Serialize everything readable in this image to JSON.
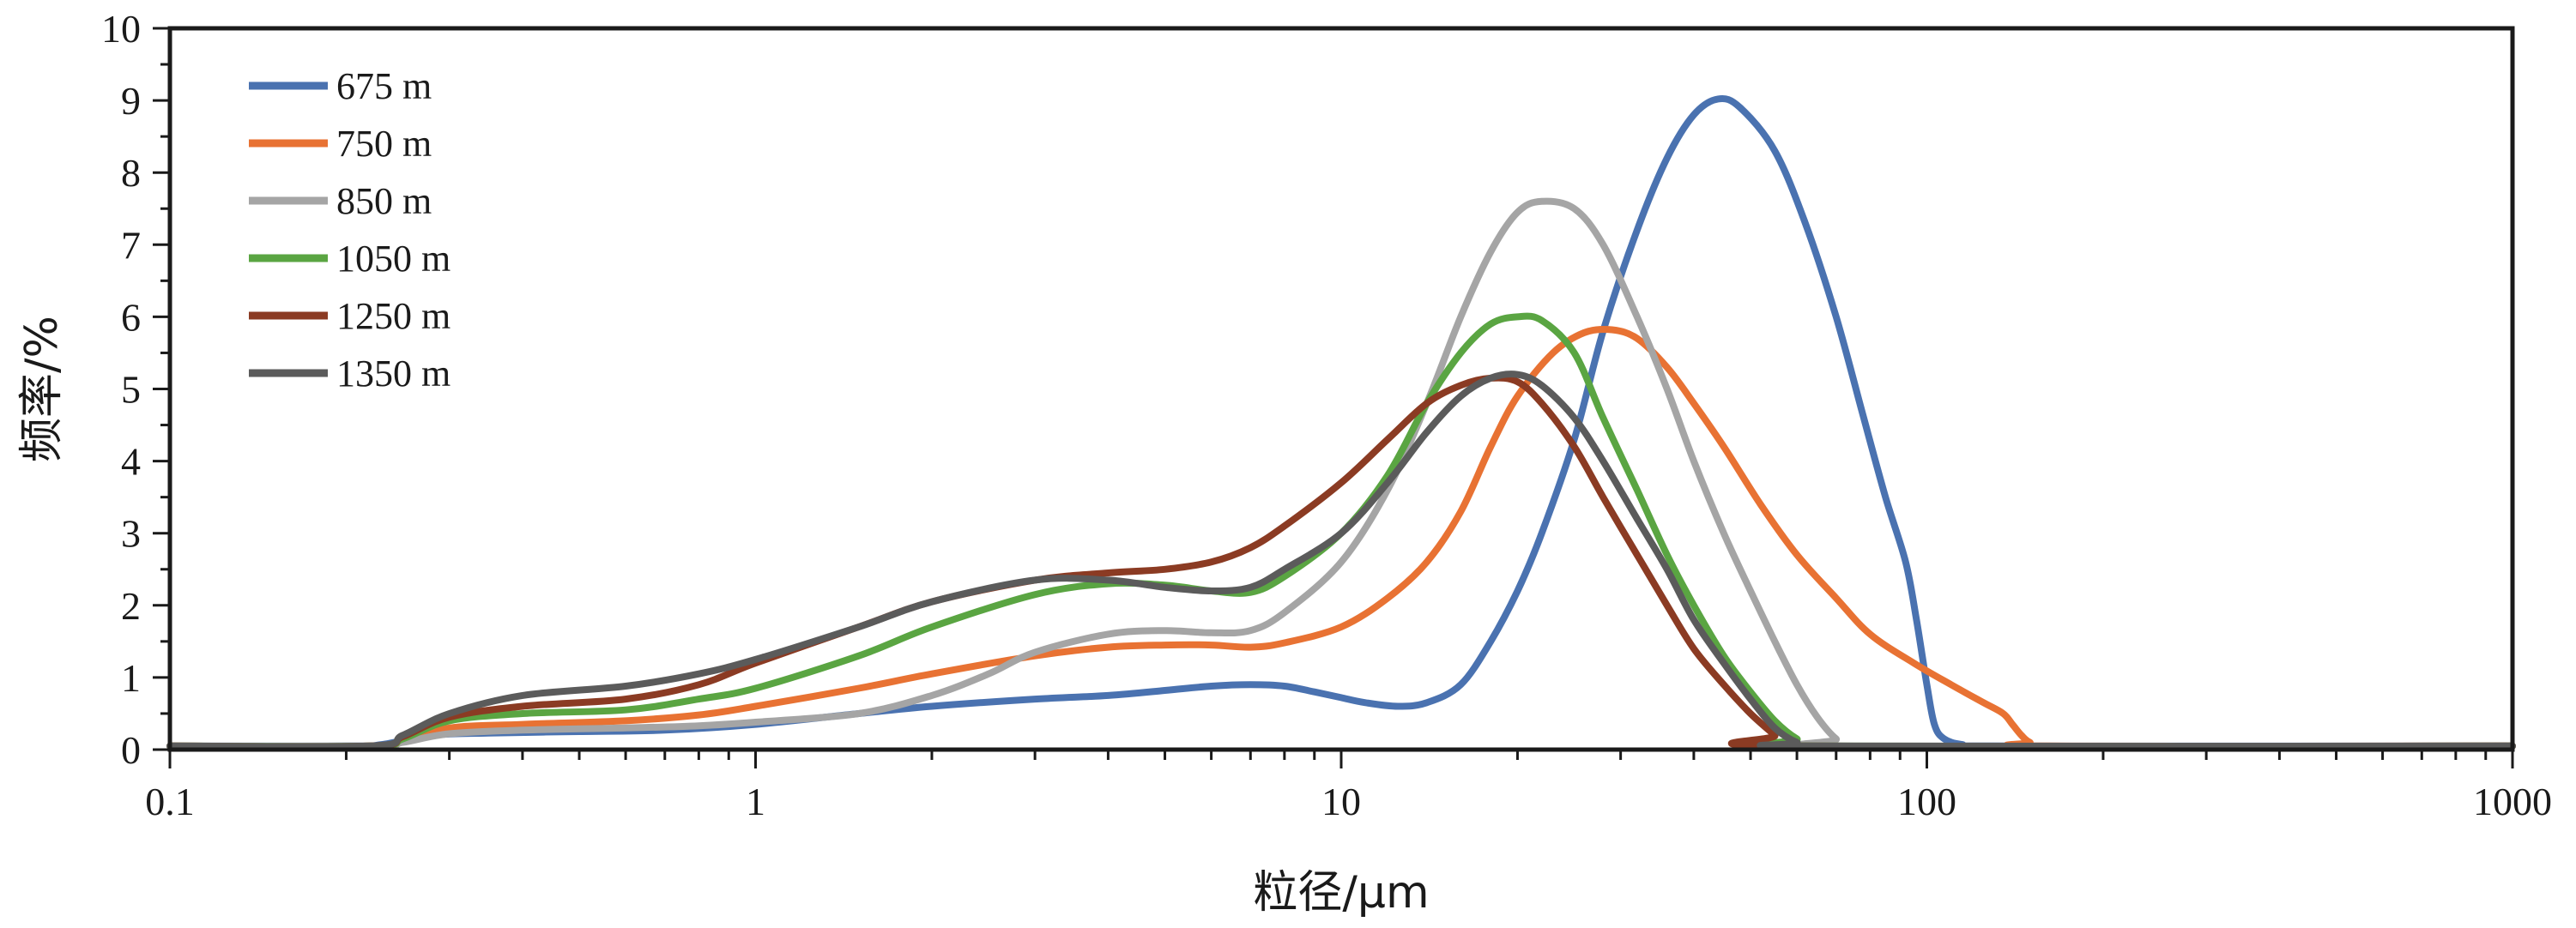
{
  "chart_data": {
    "type": "line",
    "xlabel": "粒径/μm",
    "ylabel": "频率/%",
    "x_scale": "log",
    "xlim": [
      0.1,
      1000
    ],
    "ylim": [
      0,
      10
    ],
    "x_ticks": [
      "0.1",
      "1",
      "10",
      "100",
      "1000"
    ],
    "y_ticks": [
      "0",
      "1",
      "2",
      "3",
      "4",
      "5",
      "6",
      "7",
      "8",
      "9",
      "10"
    ],
    "grid": false,
    "legend_position": "top-left",
    "series": [
      {
        "name": "675 m",
        "color": "#4a72b0",
        "points": [
          [
            0.1,
            0.05
          ],
          [
            0.2,
            0.05
          ],
          [
            0.23,
            0.07
          ],
          [
            0.28,
            0.2
          ],
          [
            0.35,
            0.23
          ],
          [
            0.5,
            0.25
          ],
          [
            0.7,
            0.27
          ],
          [
            1,
            0.35
          ],
          [
            1.5,
            0.5
          ],
          [
            2,
            0.6
          ],
          [
            3,
            0.7
          ],
          [
            4,
            0.75
          ],
          [
            5,
            0.82
          ],
          [
            6,
            0.88
          ],
          [
            7,
            0.9
          ],
          [
            8,
            0.88
          ],
          [
            9,
            0.8
          ],
          [
            10,
            0.72
          ],
          [
            11,
            0.65
          ],
          [
            12.5,
            0.6
          ],
          [
            14,
            0.65
          ],
          [
            16,
            0.9
          ],
          [
            18,
            1.5
          ],
          [
            20,
            2.2
          ],
          [
            22,
            3
          ],
          [
            25,
            4.3
          ],
          [
            28,
            5.8
          ],
          [
            32,
            7.2
          ],
          [
            36,
            8.2
          ],
          [
            40,
            8.8
          ],
          [
            44,
            9.02
          ],
          [
            48,
            8.9
          ],
          [
            55,
            8.3
          ],
          [
            62,
            7.3
          ],
          [
            70,
            6
          ],
          [
            78,
            4.6
          ],
          [
            85,
            3.5
          ],
          [
            92,
            2.6
          ],
          [
            96,
            1.8
          ],
          [
            100,
            0.9
          ],
          [
            103,
            0.35
          ],
          [
            107,
            0.15
          ],
          [
            115,
            0.07
          ],
          [
            130,
            0.05
          ],
          [
            1000,
            0.05
          ]
        ]
      },
      {
        "name": "750 m",
        "color": "#e87233",
        "points": [
          [
            0.1,
            0.05
          ],
          [
            0.22,
            0.05
          ],
          [
            0.25,
            0.12
          ],
          [
            0.3,
            0.3
          ],
          [
            0.4,
            0.35
          ],
          [
            0.6,
            0.4
          ],
          [
            0.8,
            0.48
          ],
          [
            1,
            0.6
          ],
          [
            1.5,
            0.85
          ],
          [
            2,
            1.05
          ],
          [
            3,
            1.3
          ],
          [
            4,
            1.42
          ],
          [
            5,
            1.45
          ],
          [
            6,
            1.45
          ],
          [
            7,
            1.42
          ],
          [
            8,
            1.48
          ],
          [
            10,
            1.7
          ],
          [
            12,
            2.1
          ],
          [
            14,
            2.6
          ],
          [
            16,
            3.3
          ],
          [
            18,
            4.2
          ],
          [
            20,
            4.9
          ],
          [
            23,
            5.5
          ],
          [
            26,
            5.78
          ],
          [
            29,
            5.82
          ],
          [
            32,
            5.7
          ],
          [
            36,
            5.3
          ],
          [
            40,
            4.8
          ],
          [
            45,
            4.2
          ],
          [
            52,
            3.4
          ],
          [
            60,
            2.7
          ],
          [
            70,
            2.1
          ],
          [
            80,
            1.6
          ],
          [
            95,
            1.2
          ],
          [
            110,
            0.9
          ],
          [
            125,
            0.65
          ],
          [
            135,
            0.5
          ],
          [
            140,
            0.35
          ],
          [
            145,
            0.2
          ],
          [
            150,
            0.1
          ],
          [
            160,
            0.05
          ],
          [
            1000,
            0.05
          ]
        ]
      },
      {
        "name": "850 m",
        "color": "#a5a5a5",
        "points": [
          [
            0.1,
            0.05
          ],
          [
            0.22,
            0.05
          ],
          [
            0.25,
            0.1
          ],
          [
            0.3,
            0.22
          ],
          [
            0.4,
            0.27
          ],
          [
            0.6,
            0.3
          ],
          [
            0.8,
            0.33
          ],
          [
            1,
            0.38
          ],
          [
            1.5,
            0.5
          ],
          [
            2,
            0.75
          ],
          [
            2.5,
            1.05
          ],
          [
            3,
            1.35
          ],
          [
            4,
            1.6
          ],
          [
            5,
            1.65
          ],
          [
            6,
            1.62
          ],
          [
            7,
            1.65
          ],
          [
            8,
            1.9
          ],
          [
            10,
            2.6
          ],
          [
            12,
            3.6
          ],
          [
            14,
            4.8
          ],
          [
            16,
            6
          ],
          [
            18,
            6.9
          ],
          [
            20,
            7.45
          ],
          [
            22,
            7.6
          ],
          [
            25,
            7.5
          ],
          [
            28,
            7
          ],
          [
            32,
            6
          ],
          [
            36,
            5
          ],
          [
            40,
            4
          ],
          [
            45,
            3
          ],
          [
            50,
            2.2
          ],
          [
            55,
            1.5
          ],
          [
            60,
            0.9
          ],
          [
            65,
            0.45
          ],
          [
            70,
            0.15
          ],
          [
            75,
            0.05
          ],
          [
            1000,
            0.05
          ]
        ]
      },
      {
        "name": "1050 m",
        "color": "#5aa542",
        "points": [
          [
            0.1,
            0.05
          ],
          [
            0.22,
            0.05
          ],
          [
            0.25,
            0.15
          ],
          [
            0.3,
            0.4
          ],
          [
            0.4,
            0.5
          ],
          [
            0.6,
            0.55
          ],
          [
            0.8,
            0.7
          ],
          [
            1,
            0.85
          ],
          [
            1.5,
            1.3
          ],
          [
            2,
            1.7
          ],
          [
            3,
            2.15
          ],
          [
            4,
            2.3
          ],
          [
            5,
            2.28
          ],
          [
            6,
            2.2
          ],
          [
            7,
            2.18
          ],
          [
            8,
            2.4
          ],
          [
            10,
            3
          ],
          [
            12,
            3.8
          ],
          [
            14,
            4.8
          ],
          [
            16,
            5.5
          ],
          [
            18,
            5.9
          ],
          [
            20,
            6
          ],
          [
            22,
            5.95
          ],
          [
            25,
            5.5
          ],
          [
            28,
            4.6
          ],
          [
            32,
            3.6
          ],
          [
            36,
            2.7
          ],
          [
            40,
            2
          ],
          [
            45,
            1.3
          ],
          [
            50,
            0.8
          ],
          [
            55,
            0.4
          ],
          [
            60,
            0.15
          ],
          [
            65,
            0.05
          ],
          [
            1000,
            0.05
          ]
        ]
      },
      {
        "name": "1250 m",
        "color": "#8b3b23",
        "points": [
          [
            0.1,
            0.05
          ],
          [
            0.22,
            0.05
          ],
          [
            0.25,
            0.18
          ],
          [
            0.3,
            0.45
          ],
          [
            0.4,
            0.6
          ],
          [
            0.6,
            0.7
          ],
          [
            0.8,
            0.9
          ],
          [
            1,
            1.2
          ],
          [
            1.5,
            1.7
          ],
          [
            2,
            2.05
          ],
          [
            3,
            2.35
          ],
          [
            4,
            2.45
          ],
          [
            5,
            2.5
          ],
          [
            6,
            2.6
          ],
          [
            7,
            2.8
          ],
          [
            8,
            3.1
          ],
          [
            10,
            3.7
          ],
          [
            12,
            4.3
          ],
          [
            14,
            4.8
          ],
          [
            16,
            5.05
          ],
          [
            18,
            5.15
          ],
          [
            20,
            5.1
          ],
          [
            22,
            4.8
          ],
          [
            25,
            4.2
          ],
          [
            28,
            3.5
          ],
          [
            32,
            2.7
          ],
          [
            36,
            2
          ],
          [
            40,
            1.4
          ],
          [
            45,
            0.9
          ],
          [
            50,
            0.5
          ],
          [
            55,
            0.2
          ],
          [
            58,
            0.05
          ],
          [
            1000,
            0.05
          ]
        ]
      },
      {
        "name": "1350 m",
        "color": "#5b5b5b",
        "points": [
          [
            0.1,
            0.05
          ],
          [
            0.22,
            0.05
          ],
          [
            0.25,
            0.2
          ],
          [
            0.3,
            0.5
          ],
          [
            0.4,
            0.75
          ],
          [
            0.6,
            0.88
          ],
          [
            0.8,
            1.05
          ],
          [
            1,
            1.25
          ],
          [
            1.5,
            1.7
          ],
          [
            2,
            2.05
          ],
          [
            3,
            2.35
          ],
          [
            4,
            2.35
          ],
          [
            5,
            2.25
          ],
          [
            6,
            2.2
          ],
          [
            7,
            2.25
          ],
          [
            8,
            2.5
          ],
          [
            10,
            3
          ],
          [
            12,
            3.7
          ],
          [
            14,
            4.4
          ],
          [
            16,
            4.9
          ],
          [
            18,
            5.15
          ],
          [
            20,
            5.2
          ],
          [
            22,
            5.05
          ],
          [
            25,
            4.6
          ],
          [
            28,
            4
          ],
          [
            32,
            3.2
          ],
          [
            36,
            2.5
          ],
          [
            40,
            1.8
          ],
          [
            45,
            1.2
          ],
          [
            50,
            0.7
          ],
          [
            55,
            0.3
          ],
          [
            60,
            0.1
          ],
          [
            65,
            0.05
          ],
          [
            1000,
            0.05
          ]
        ]
      }
    ]
  }
}
